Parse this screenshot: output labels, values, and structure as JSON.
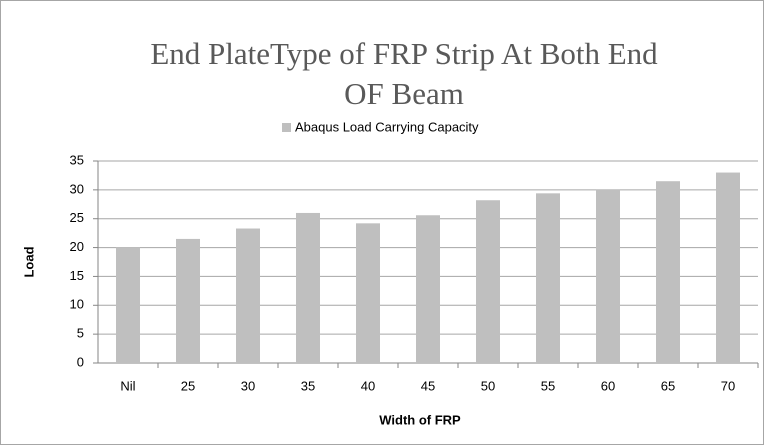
{
  "chart_data": {
    "type": "bar",
    "title_lines": [
      "End PlateType of FRP Strip At Both End",
      "OF Beam"
    ],
    "x_label": "Width of FRP",
    "y_label": "Load",
    "categories": [
      "Nil",
      "25",
      "30",
      "35",
      "40",
      "45",
      "50",
      "55",
      "60",
      "65",
      "70"
    ],
    "series": [
      {
        "name": "Abaqus Load Carrying Capacity",
        "color": "#bfbfbf",
        "values": [
          20,
          21.5,
          23.3,
          26,
          24.2,
          25.6,
          28.2,
          29.4,
          30,
          31.5,
          33
        ]
      }
    ],
    "ylim": [
      0,
      35
    ],
    "yticks": [
      0,
      5,
      10,
      15,
      20,
      25,
      30,
      35
    ],
    "grid": true,
    "legend": "top"
  }
}
